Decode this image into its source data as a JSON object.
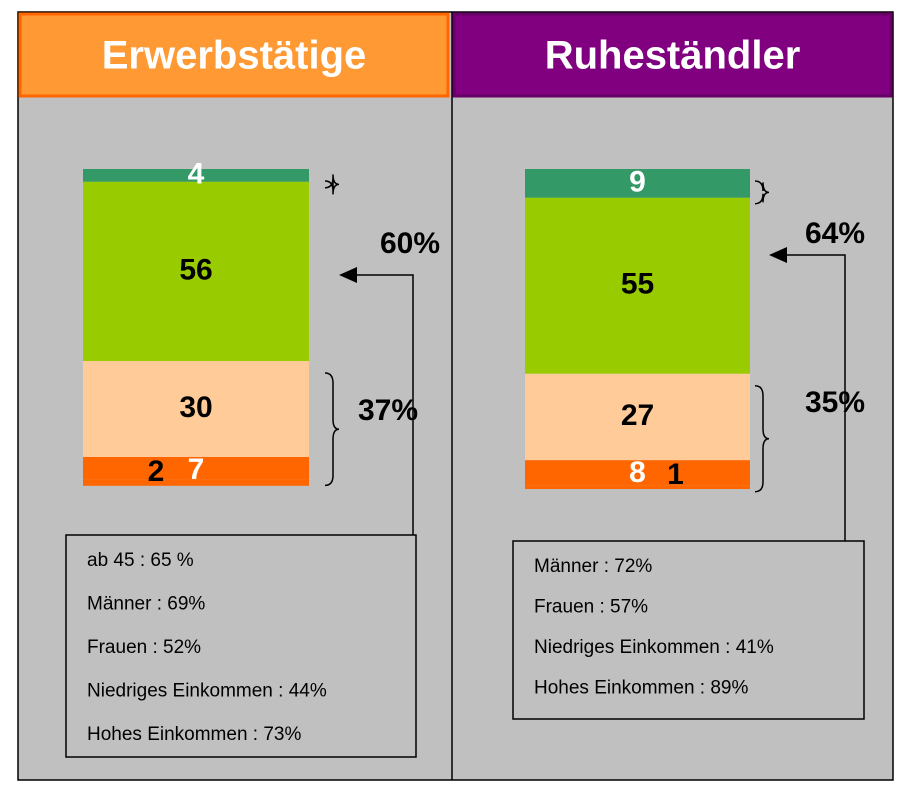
{
  "chart_data": [
    {
      "type": "stacked_bar",
      "title": "Erwerbstätige",
      "header_color": "#ff9933",
      "header_border": "#ff6600",
      "values": [
        4,
        56,
        30,
        7,
        2
      ],
      "colors": [
        "#339966",
        "#99cc00",
        "#ffcc99",
        "#ff6600",
        "#ff6600"
      ],
      "label_colors": [
        "#ffffff",
        "#000000",
        "#000000",
        "#ffffff",
        "#000000"
      ],
      "ylim": [
        0,
        100
      ],
      "brackets": [
        {
          "value": 60,
          "label": "60%"
        },
        {
          "value": 37,
          "label": "37%"
        }
      ],
      "notes": [
        "ab 45 : 65 %",
        "Männer : 69%",
        "Frauen : 52%",
        "Niedriges Einkommen : 44%",
        "Hohes Einkommen : 73%"
      ]
    },
    {
      "type": "stacked_bar",
      "title": "Ruheständler",
      "header_color": "#800080",
      "header_border": "#660066",
      "values": [
        9,
        55,
        27,
        8,
        1
      ],
      "colors": [
        "#339966",
        "#99cc00",
        "#ffcc99",
        "#ff6600",
        "#ff6600"
      ],
      "label_colors": [
        "#ffffff",
        "#000000",
        "#000000",
        "#ffffff",
        "#000000"
      ],
      "ylim": [
        0,
        100
      ],
      "brackets": [
        {
          "value": 64,
          "label": "64%"
        },
        {
          "value": 35,
          "label": "35%"
        }
      ],
      "notes": [
        "Männer : 72%",
        "Frauen : 57%",
        "Niedriges Einkommen : 41%",
        "Hohes Einkommen : 89%"
      ]
    }
  ]
}
